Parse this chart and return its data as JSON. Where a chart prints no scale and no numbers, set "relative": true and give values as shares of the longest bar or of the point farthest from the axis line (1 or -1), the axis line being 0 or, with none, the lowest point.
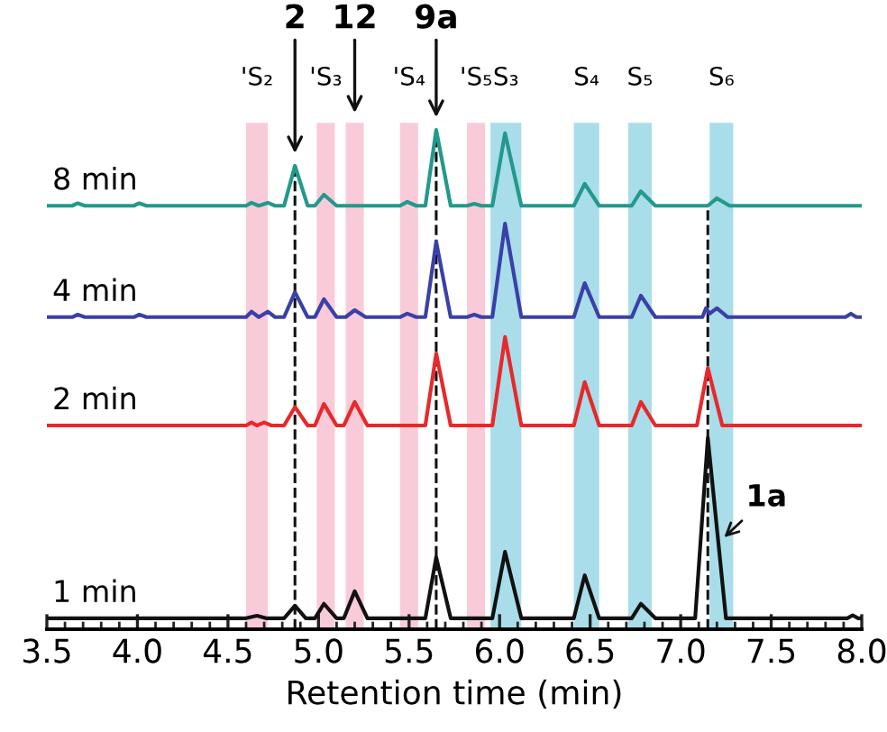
{
  "chart_data": {
    "type": "line",
    "relative": true,
    "xlabel": "Retention time (min)",
    "xlim": [
      3.5,
      8.0
    ],
    "xticks": [
      3.5,
      {
        "value": 4.0,
        "label": "4.0"
      },
      4.5,
      {
        "value": 5.0,
        "label": "5.0"
      },
      5.5,
      {
        "value": 6.0,
        "label": "6.0"
      },
      6.5,
      {
        "value": 7.0,
        "label": "7.0"
      },
      7.5,
      {
        "value": 8.0,
        "label": "8.0"
      }
    ],
    "grid": false,
    "legend": false,
    "marker": "none",
    "line_style": "solid",
    "series": [
      {
        "name": "8 min",
        "color": "#22998c",
        "x": [
          3.5,
          3.64,
          3.67,
          3.71,
          3.98,
          4.01,
          4.05,
          4.6,
          4.63,
          4.67,
          4.72,
          4.76,
          4.81,
          4.87,
          4.94,
          4.98,
          5.03,
          5.1,
          5.45,
          5.49,
          5.54,
          5.59,
          5.65,
          5.73,
          5.82,
          5.86,
          5.9,
          5.96,
          6.03,
          6.12,
          6.41,
          6.47,
          6.55,
          6.73,
          6.78,
          6.86,
          7.15,
          7.2,
          7.27,
          8.0
        ],
        "values": [
          0.848,
          0.848,
          0.853,
          0.848,
          0.848,
          0.853,
          0.848,
          0.848,
          0.854,
          0.848,
          0.854,
          0.848,
          0.848,
          0.928,
          0.848,
          0.848,
          0.87,
          0.848,
          0.848,
          0.856,
          0.848,
          0.848,
          1.0,
          0.848,
          0.848,
          0.852,
          0.848,
          0.848,
          0.993,
          0.848,
          0.848,
          0.892,
          0.848,
          0.848,
          0.877,
          0.848,
          0.848,
          0.863,
          0.848,
          0.848
        ]
      },
      {
        "name": "4 min",
        "color": "#3a40a8",
        "x": [
          3.5,
          3.64,
          3.67,
          3.71,
          3.98,
          4.01,
          4.05,
          4.6,
          4.63,
          4.67,
          4.72,
          4.76,
          4.81,
          4.87,
          4.94,
          4.98,
          5.03,
          5.1,
          5.15,
          5.2,
          5.26,
          5.45,
          5.49,
          5.54,
          5.59,
          5.65,
          5.73,
          5.82,
          5.86,
          5.9,
          5.96,
          6.03,
          6.12,
          6.41,
          6.47,
          6.55,
          6.73,
          6.78,
          6.86,
          7.12,
          7.14,
          7.16,
          7.2,
          7.26,
          7.91,
          7.94,
          7.97,
          8.0
        ],
        "values": [
          0.625,
          0.625,
          0.63,
          0.625,
          0.625,
          0.63,
          0.625,
          0.625,
          0.636,
          0.625,
          0.636,
          0.625,
          0.625,
          0.675,
          0.625,
          0.625,
          0.661,
          0.625,
          0.625,
          0.639,
          0.625,
          0.625,
          0.632,
          0.625,
          0.625,
          0.776,
          0.625,
          0.625,
          0.63,
          0.625,
          0.625,
          0.812,
          0.625,
          0.625,
          0.693,
          0.625,
          0.625,
          0.668,
          0.625,
          0.625,
          0.643,
          0.632,
          0.643,
          0.625,
          0.625,
          0.632,
          0.625,
          0.625
        ]
      },
      {
        "name": "2 min",
        "color": "#e8282a",
        "x": [
          3.5,
          4.6,
          4.63,
          4.66,
          4.7,
          4.74,
          4.81,
          4.87,
          4.94,
          4.98,
          5.03,
          5.1,
          5.14,
          5.2,
          5.27,
          5.59,
          5.65,
          5.73,
          5.96,
          6.03,
          6.12,
          6.41,
          6.47,
          6.55,
          6.73,
          6.78,
          6.86,
          7.09,
          7.15,
          7.23,
          8.0
        ],
        "values": [
          0.408,
          0.408,
          0.414,
          0.408,
          0.414,
          0.408,
          0.408,
          0.445,
          0.408,
          0.408,
          0.451,
          0.408,
          0.408,
          0.455,
          0.408,
          0.408,
          0.552,
          0.408,
          0.408,
          0.585,
          0.408,
          0.408,
          0.495,
          0.408,
          0.408,
          0.455,
          0.408,
          0.408,
          0.523,
          0.408,
          0.408
        ]
      },
      {
        "name": "1 min",
        "color": "#111111",
        "x": [
          3.5,
          4.6,
          4.66,
          4.71,
          4.81,
          4.87,
          4.93,
          4.98,
          5.03,
          5.1,
          5.14,
          5.2,
          5.27,
          5.59,
          5.65,
          5.73,
          5.96,
          6.03,
          6.12,
          6.41,
          6.47,
          6.55,
          6.73,
          6.78,
          6.86,
          7.08,
          7.15,
          7.25,
          7.92,
          7.95,
          7.98,
          8.0
        ],
        "values": [
          0.022,
          0.022,
          0.027,
          0.022,
          0.022,
          0.047,
          0.022,
          0.022,
          0.051,
          0.022,
          0.022,
          0.076,
          0.022,
          0.022,
          0.144,
          0.022,
          0.022,
          0.155,
          0.022,
          0.022,
          0.108,
          0.022,
          0.022,
          0.051,
          0.022,
          0.022,
          0.383,
          0.022,
          0.022,
          0.028,
          0.022,
          0.022
        ]
      }
    ],
    "bands": [
      {
        "axis": "x",
        "from": 4.6,
        "to": 4.72,
        "label": "'S₂",
        "color": "#f9cbd9"
      },
      {
        "axis": "x",
        "from": 4.99,
        "to": 5.09,
        "label": "'S₃",
        "color": "#f9cbd9"
      },
      {
        "axis": "x",
        "from": 5.15,
        "to": 5.25,
        "color": "#f9cbd9"
      },
      {
        "axis": "x",
        "from": 5.45,
        "to": 5.55,
        "label": "'S₄",
        "color": "#f9cbd9"
      },
      {
        "axis": "x",
        "from": 5.82,
        "to": 5.92,
        "label": "'S₅",
        "color": "#f9cbd9"
      },
      {
        "axis": "x",
        "from": 5.95,
        "to": 6.12,
        "label": "S₃",
        "color": "#a9dde9"
      },
      {
        "axis": "x",
        "from": 6.41,
        "to": 6.55,
        "label": "S₄",
        "color": "#a9dde9"
      },
      {
        "axis": "x",
        "from": 6.71,
        "to": 6.84,
        "label": "S₅",
        "color": "#a9dde9"
      },
      {
        "axis": "x",
        "from": 7.16,
        "to": 7.29,
        "label": "S₆",
        "color": "#a9dde9"
      }
    ],
    "ref_lines": [
      {
        "axis": "x",
        "value": 4.87,
        "color": "#111111",
        "line_style": "dashed"
      },
      {
        "axis": "x",
        "value": 5.65,
        "color": "#111111",
        "line_style": "dashed"
      },
      {
        "axis": "x",
        "value": 7.15,
        "color": "#111111",
        "line_style": "dashed"
      }
    ],
    "annotations": [
      {
        "text": "2",
        "x": 4.87,
        "y": 0.928
      },
      "12",
      {
        "text": "9a",
        "x": 5.65,
        "y": 1.0
      },
      {
        "text": "1a",
        "x": 7.24,
        "y": 0.184
      }
    ]
  }
}
